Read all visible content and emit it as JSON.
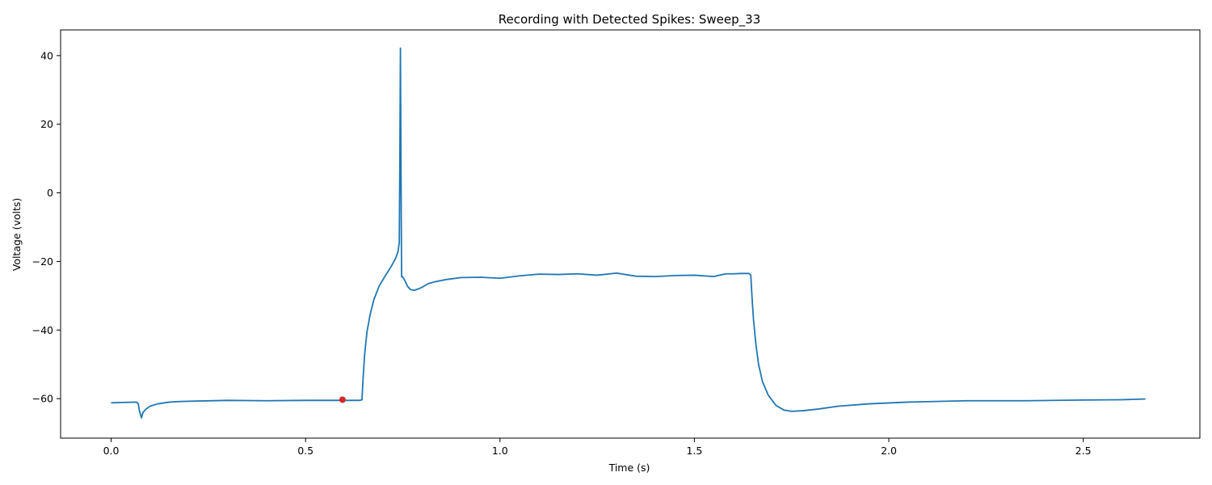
{
  "chart_data": {
    "type": "line",
    "title": "Recording with Detected Spikes: Sweep_33",
    "xlabel": "Time (s)",
    "ylabel": "Voltage (volts)",
    "xlim": [
      -0.13,
      2.8
    ],
    "ylim": [
      -71.5,
      47.5
    ],
    "xticks": [
      0.0,
      0.5,
      1.0,
      1.5,
      2.0,
      2.5
    ],
    "xtick_labels": [
      "0.0",
      "0.5",
      "1.0",
      "1.5",
      "2.0",
      "2.5"
    ],
    "yticks": [
      -60,
      -40,
      -20,
      0,
      20,
      40
    ],
    "ytick_labels": [
      "−60",
      "−40",
      "−20",
      "0",
      "20",
      "40"
    ],
    "grid": false,
    "line_color": "#1f77b4",
    "spike_color": "#d62728",
    "series": [
      {
        "x": [
          0.0,
          0.03,
          0.065,
          0.07,
          0.072,
          0.076,
          0.078,
          0.082,
          0.09,
          0.1,
          0.12,
          0.15,
          0.18,
          0.22,
          0.3,
          0.4,
          0.5,
          0.6,
          0.64,
          0.645,
          0.648,
          0.652,
          0.658,
          0.666,
          0.676,
          0.69,
          0.705,
          0.72,
          0.732,
          0.738,
          0.741,
          0.7425,
          0.744,
          0.7455,
          0.747,
          0.75,
          0.755,
          0.762,
          0.77,
          0.78,
          0.79,
          0.8,
          0.815,
          0.83,
          0.86,
          0.9,
          0.95,
          1.0,
          1.05,
          1.1,
          1.15,
          1.2,
          1.25,
          1.3,
          1.35,
          1.4,
          1.45,
          1.5,
          1.55,
          1.58,
          1.6,
          1.62,
          1.64,
          1.645,
          1.648,
          1.652,
          1.658,
          1.665,
          1.675,
          1.69,
          1.71,
          1.73,
          1.75,
          1.78,
          1.82,
          1.87,
          1.95,
          2.05,
          2.2,
          2.35,
          2.5,
          2.6,
          2.66
        ],
        "y": [
          -61.2,
          -61.1,
          -61.0,
          -61.5,
          -63.2,
          -64.8,
          -65.6,
          -64.0,
          -63.0,
          -62.2,
          -61.5,
          -61.0,
          -60.8,
          -60.7,
          -60.5,
          -60.6,
          -60.5,
          -60.5,
          -60.5,
          -60.3,
          -54.0,
          -47.0,
          -40.5,
          -35.5,
          -31.0,
          -27.0,
          -24.2,
          -21.5,
          -19.0,
          -17.0,
          -14.5,
          10.0,
          42.2,
          5.0,
          -24.5,
          -24.5,
          -25.5,
          -27.2,
          -28.2,
          -28.4,
          -28.0,
          -27.5,
          -26.5,
          -26.0,
          -25.3,
          -24.7,
          -24.6,
          -24.9,
          -24.2,
          -23.7,
          -23.8,
          -23.6,
          -24.0,
          -23.4,
          -24.3,
          -24.4,
          -24.1,
          -24.0,
          -24.4,
          -23.6,
          -23.6,
          -23.5,
          -23.5,
          -24.0,
          -30.0,
          -37.0,
          -44.0,
          -50.0,
          -55.0,
          -59.0,
          -62.0,
          -63.3,
          -63.7,
          -63.5,
          -63.0,
          -62.2,
          -61.5,
          -61.0,
          -60.6,
          -60.6,
          -60.4,
          -60.3,
          -60.1
        ]
      }
    ],
    "spikes": [
      {
        "x": 0.595,
        "y": -60.3
      }
    ]
  }
}
